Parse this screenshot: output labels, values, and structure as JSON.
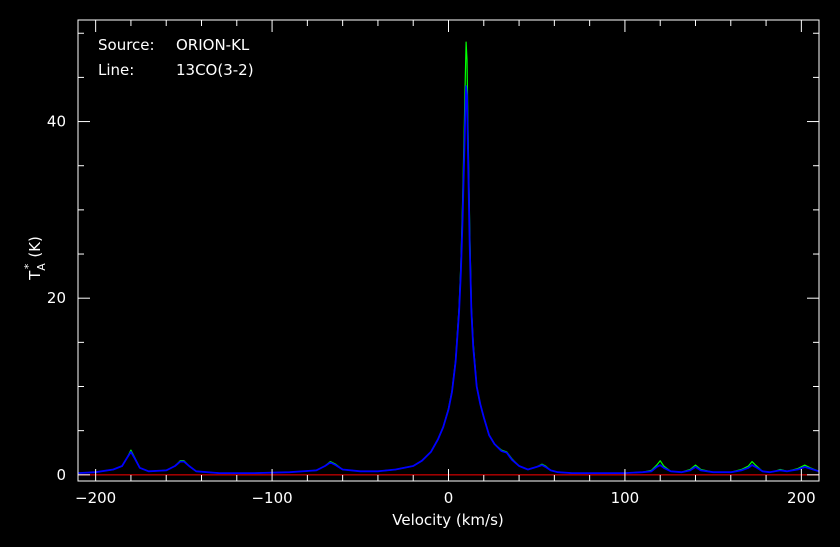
{
  "chart_data": {
    "type": "line",
    "xlabel": "Velocity (km/s)",
    "ylabel_main": "T",
    "ylabel_sub": "A",
    "ylabel_sup": "*",
    "ylabel_units": "(K)",
    "xlim": [
      -210,
      210
    ],
    "ylim": [
      -0.7,
      51.5
    ],
    "xticks": [
      -200,
      -100,
      0,
      100,
      200
    ],
    "yticks": [
      0,
      20,
      40
    ],
    "grid": false,
    "info": [
      {
        "label": "Source:",
        "value": "ORION-KL"
      },
      {
        "label": "Line:",
        "value": "13CO(3-2)"
      }
    ],
    "baseline": {
      "y": 0,
      "color": "#ff0000"
    },
    "series": [
      {
        "color": "#00ff00",
        "x": [
          -210,
          -200,
          -190,
          -185,
          -182,
          -180,
          -178,
          -175,
          -170,
          -160,
          -155,
          -152,
          -150,
          -147,
          -143,
          -130,
          -110,
          -90,
          -75,
          -70,
          -67,
          -64,
          -60,
          -50,
          -40,
          -30,
          -20,
          -15,
          -10,
          -6,
          -3,
          0,
          2,
          4,
          6,
          7,
          8,
          9,
          9.5,
          10,
          10.5,
          11,
          12,
          13,
          14,
          16,
          18,
          20,
          23,
          26,
          30,
          33,
          36,
          40,
          45,
          50,
          53,
          55,
          58,
          62,
          70,
          80,
          90,
          100,
          110,
          115,
          118,
          120,
          122,
          126,
          132,
          137,
          140,
          143,
          150,
          160,
          166,
          170,
          172,
          174,
          178,
          182,
          185,
          188,
          192,
          198,
          202,
          205,
          210
        ],
        "y": [
          0.2,
          0.3,
          0.6,
          1.0,
          2.0,
          2.8,
          2.0,
          0.8,
          0.4,
          0.5,
          1.0,
          1.6,
          1.6,
          1.0,
          0.4,
          0.2,
          0.2,
          0.3,
          0.5,
          1.0,
          1.5,
          1.2,
          0.6,
          0.4,
          0.4,
          0.6,
          1.0,
          1.6,
          2.6,
          4.0,
          5.4,
          7.5,
          9.5,
          13,
          19,
          24,
          31,
          40,
          45,
          49,
          47,
          40,
          28,
          19,
          15,
          10,
          8,
          6.5,
          4.5,
          3.5,
          2.8,
          2.6,
          1.8,
          1.0,
          0.6,
          0.9,
          1.2,
          1.0,
          0.5,
          0.3,
          0.2,
          0.2,
          0.2,
          0.2,
          0.3,
          0.5,
          1.1,
          1.6,
          1.0,
          0.4,
          0.3,
          0.6,
          1.1,
          0.6,
          0.3,
          0.3,
          0.6,
          1.0,
          1.5,
          1.1,
          0.4,
          0.3,
          0.4,
          0.6,
          0.4,
          0.7,
          1.1,
          0.8,
          0.4
        ]
      },
      {
        "color": "#0000ff",
        "x": [
          -210,
          -200,
          -190,
          -185,
          -182,
          -180,
          -178,
          -175,
          -170,
          -160,
          -155,
          -152,
          -150,
          -147,
          -143,
          -130,
          -110,
          -90,
          -75,
          -70,
          -67,
          -64,
          -60,
          -50,
          -40,
          -30,
          -20,
          -15,
          -10,
          -6,
          -3,
          0,
          2,
          4,
          6,
          7,
          8,
          9,
          9.5,
          10,
          10.5,
          11,
          12,
          13,
          14,
          16,
          18,
          20,
          23,
          26,
          30,
          33,
          36,
          40,
          45,
          50,
          53,
          55,
          58,
          62,
          70,
          80,
          90,
          100,
          110,
          115,
          118,
          120,
          122,
          126,
          132,
          137,
          140,
          143,
          150,
          160,
          166,
          170,
          172,
          174,
          178,
          182,
          185,
          188,
          192,
          198,
          202,
          205,
          210
        ],
        "y": [
          0.2,
          0.3,
          0.6,
          1.0,
          2.0,
          2.6,
          1.9,
          0.8,
          0.4,
          0.5,
          1.0,
          1.5,
          1.5,
          1.0,
          0.4,
          0.2,
          0.2,
          0.3,
          0.5,
          1.0,
          1.4,
          1.1,
          0.6,
          0.4,
          0.4,
          0.6,
          1.0,
          1.6,
          2.6,
          4.0,
          5.4,
          7.4,
          9.4,
          12.8,
          18.5,
          23,
          29,
          37,
          41,
          44,
          43,
          37,
          26,
          18.5,
          14.5,
          10,
          8,
          6.5,
          4.5,
          3.5,
          2.7,
          2.5,
          1.7,
          1.0,
          0.6,
          0.9,
          1.1,
          0.9,
          0.5,
          0.3,
          0.2,
          0.2,
          0.2,
          0.2,
          0.3,
          0.4,
          0.9,
          1.1,
          0.8,
          0.4,
          0.3,
          0.5,
          0.9,
          0.5,
          0.3,
          0.3,
          0.5,
          0.8,
          1.1,
          0.9,
          0.4,
          0.3,
          0.4,
          0.5,
          0.4,
          0.6,
          0.9,
          0.7,
          0.4
        ]
      }
    ]
  }
}
